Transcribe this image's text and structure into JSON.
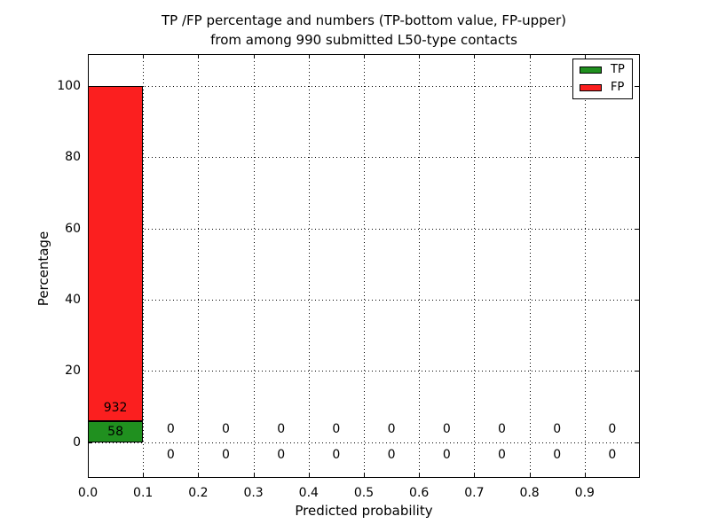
{
  "title": {
    "line1": "TP /FP percentage and numbers (TP-bottom value, FP-upper)",
    "line2": "from among 990 submitted L50-type contacts"
  },
  "chart_data": {
    "type": "bar",
    "stacked": true,
    "title": "TP /FP percentage and numbers (TP-bottom value, FP-upper) from among 990 submitted L50-type contacts",
    "xlabel": "Predicted probability",
    "ylabel": "Percentage",
    "total_contacts": 990,
    "bin_width": 0.1,
    "bin_starts": [
      0.0,
      0.1,
      0.2,
      0.3,
      0.4,
      0.5,
      0.6,
      0.7,
      0.8,
      0.9
    ],
    "x_tick_labels": [
      "0.0",
      "0.1",
      "0.2",
      "0.3",
      "0.4",
      "0.5",
      "0.6",
      "0.7",
      "0.8",
      "0.9"
    ],
    "y_ticks": [
      0,
      20,
      40,
      60,
      80,
      100
    ],
    "xlim": [
      0.0,
      1.0
    ],
    "ylim": [
      -10,
      109
    ],
    "grid": "dotted",
    "legend_position": "upper right",
    "series": [
      {
        "name": "TP",
        "color": "#20901f",
        "counts": [
          58,
          0,
          0,
          0,
          0,
          0,
          0,
          0,
          0,
          0
        ]
      },
      {
        "name": "FP",
        "color": "#fb1f1f",
        "counts": [
          932,
          0,
          0,
          0,
          0,
          0,
          0,
          0,
          0,
          0
        ]
      }
    ]
  }
}
